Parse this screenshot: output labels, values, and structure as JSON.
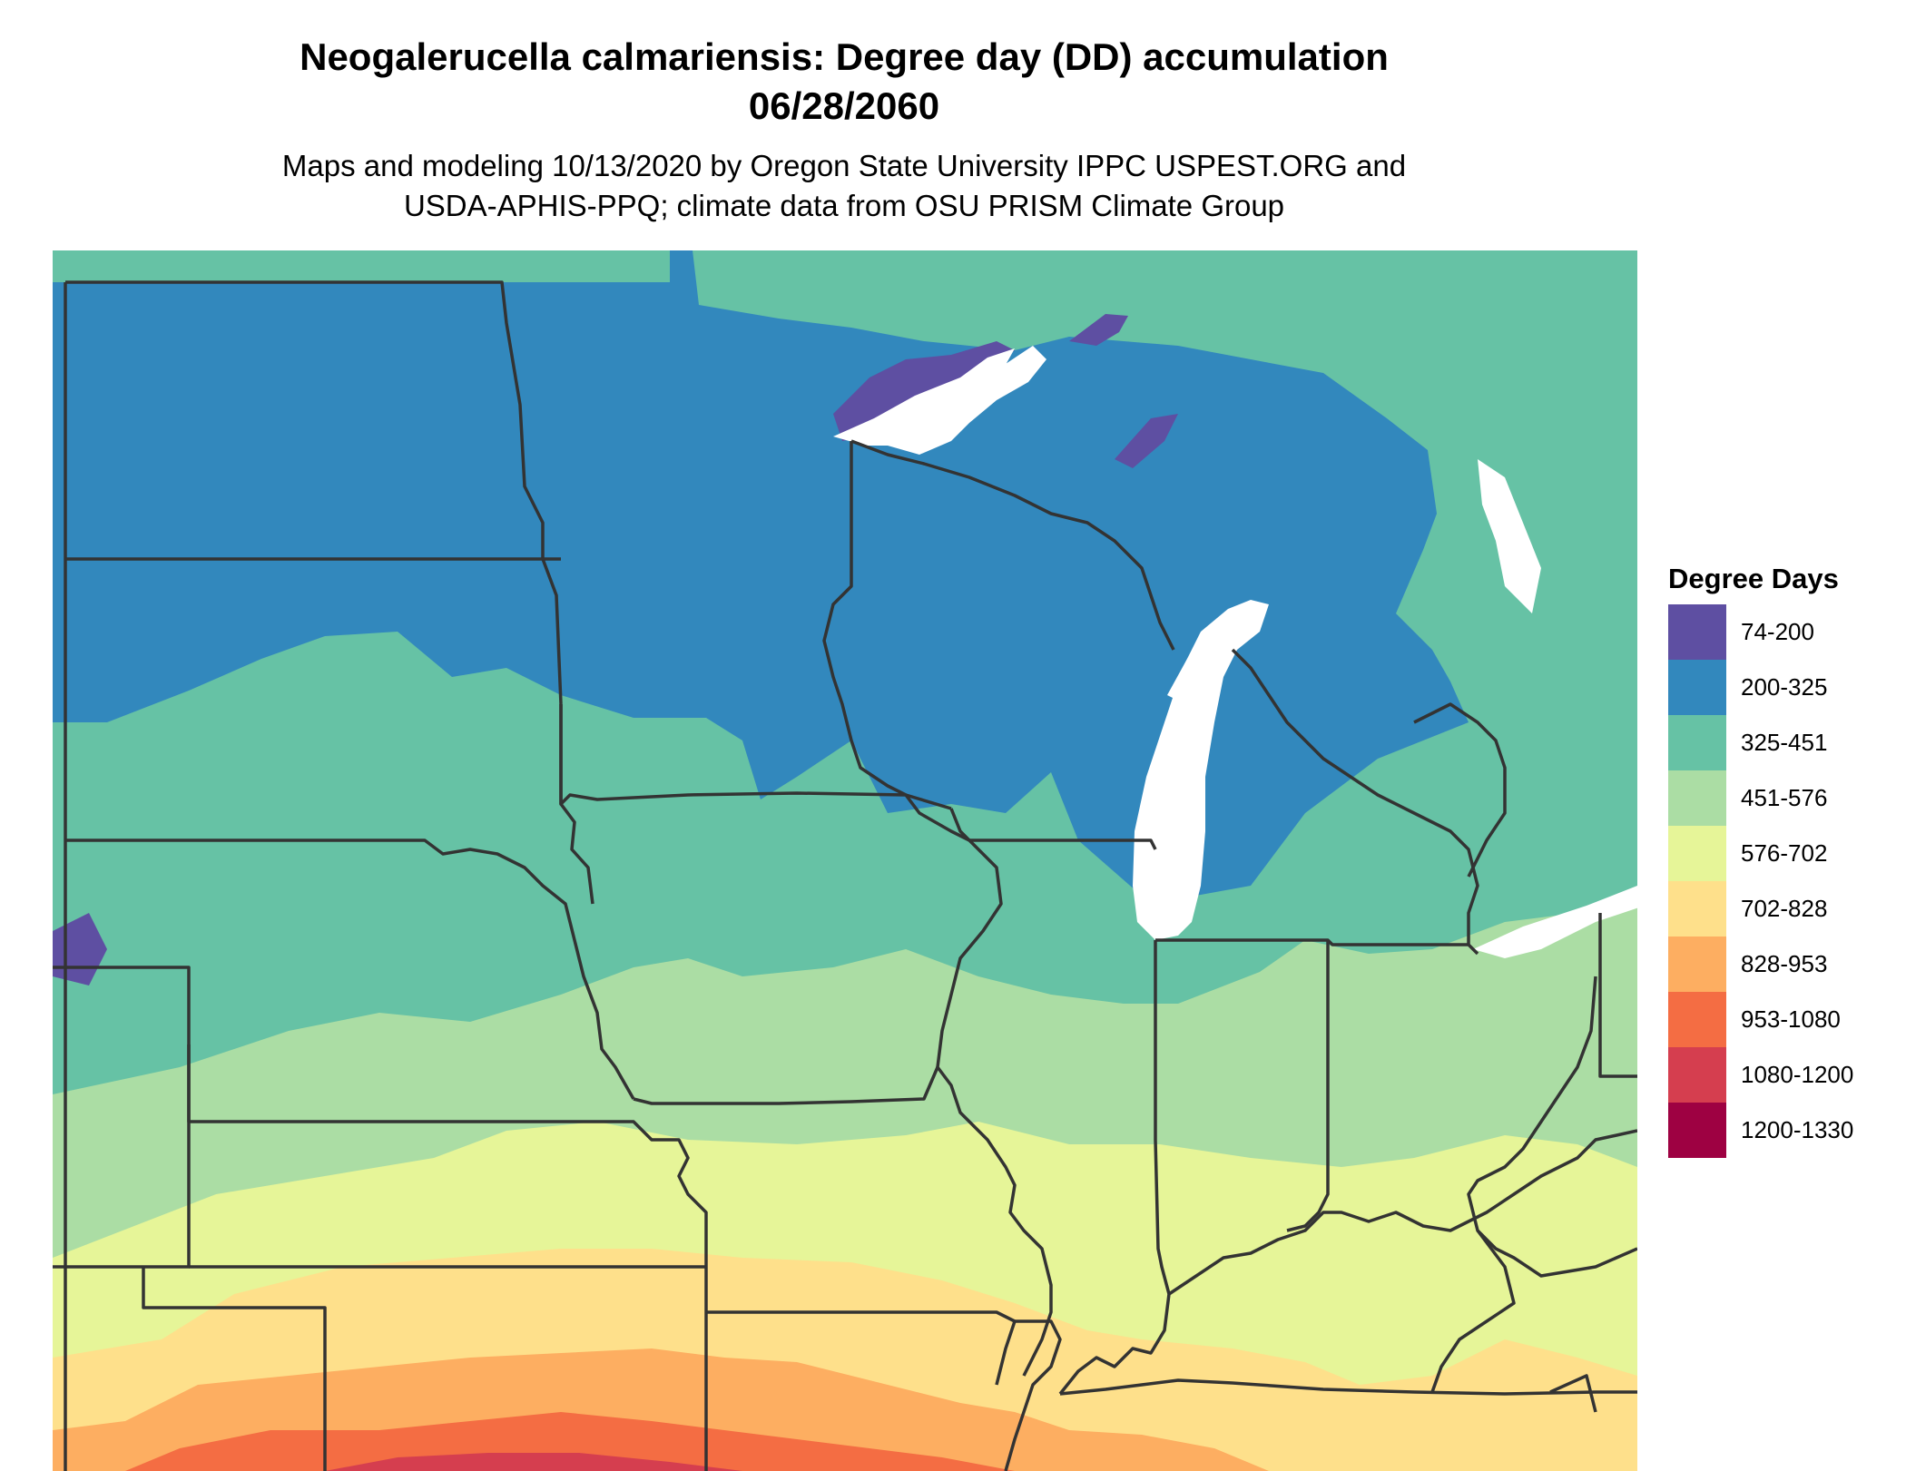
{
  "title": {
    "line1": "Neogalerucella calmariensis: Degree day (DD) accumulation",
    "line2": "06/28/2060"
  },
  "subtitle": {
    "line1": "Maps and modeling 10/13/2020 by Oregon State University IPPC USPEST.ORG and",
    "line2": "USDA-APHIS-PPQ; climate data from OSU PRISM Climate Group"
  },
  "legend": {
    "title": "Degree Days",
    "items": [
      {
        "label": "74-200",
        "color": "#5E4FA2"
      },
      {
        "label": "200-325",
        "color": "#3288BD"
      },
      {
        "label": "325-451",
        "color": "#66C2A5"
      },
      {
        "label": "451-576",
        "color": "#ABDDA4"
      },
      {
        "label": "576-702",
        "color": "#E6F598"
      },
      {
        "label": "702-828",
        "color": "#FEE08B"
      },
      {
        "label": "828-953",
        "color": "#FDAE61"
      },
      {
        "label": "953-1080",
        "color": "#F46D43"
      },
      {
        "label": "1080-1200",
        "color": "#D53E4F"
      },
      {
        "label": "1200-1330",
        "color": "#9E0142"
      }
    ]
  },
  "map": {
    "water_color": "#FFFFFF",
    "border_color": "#333333"
  }
}
